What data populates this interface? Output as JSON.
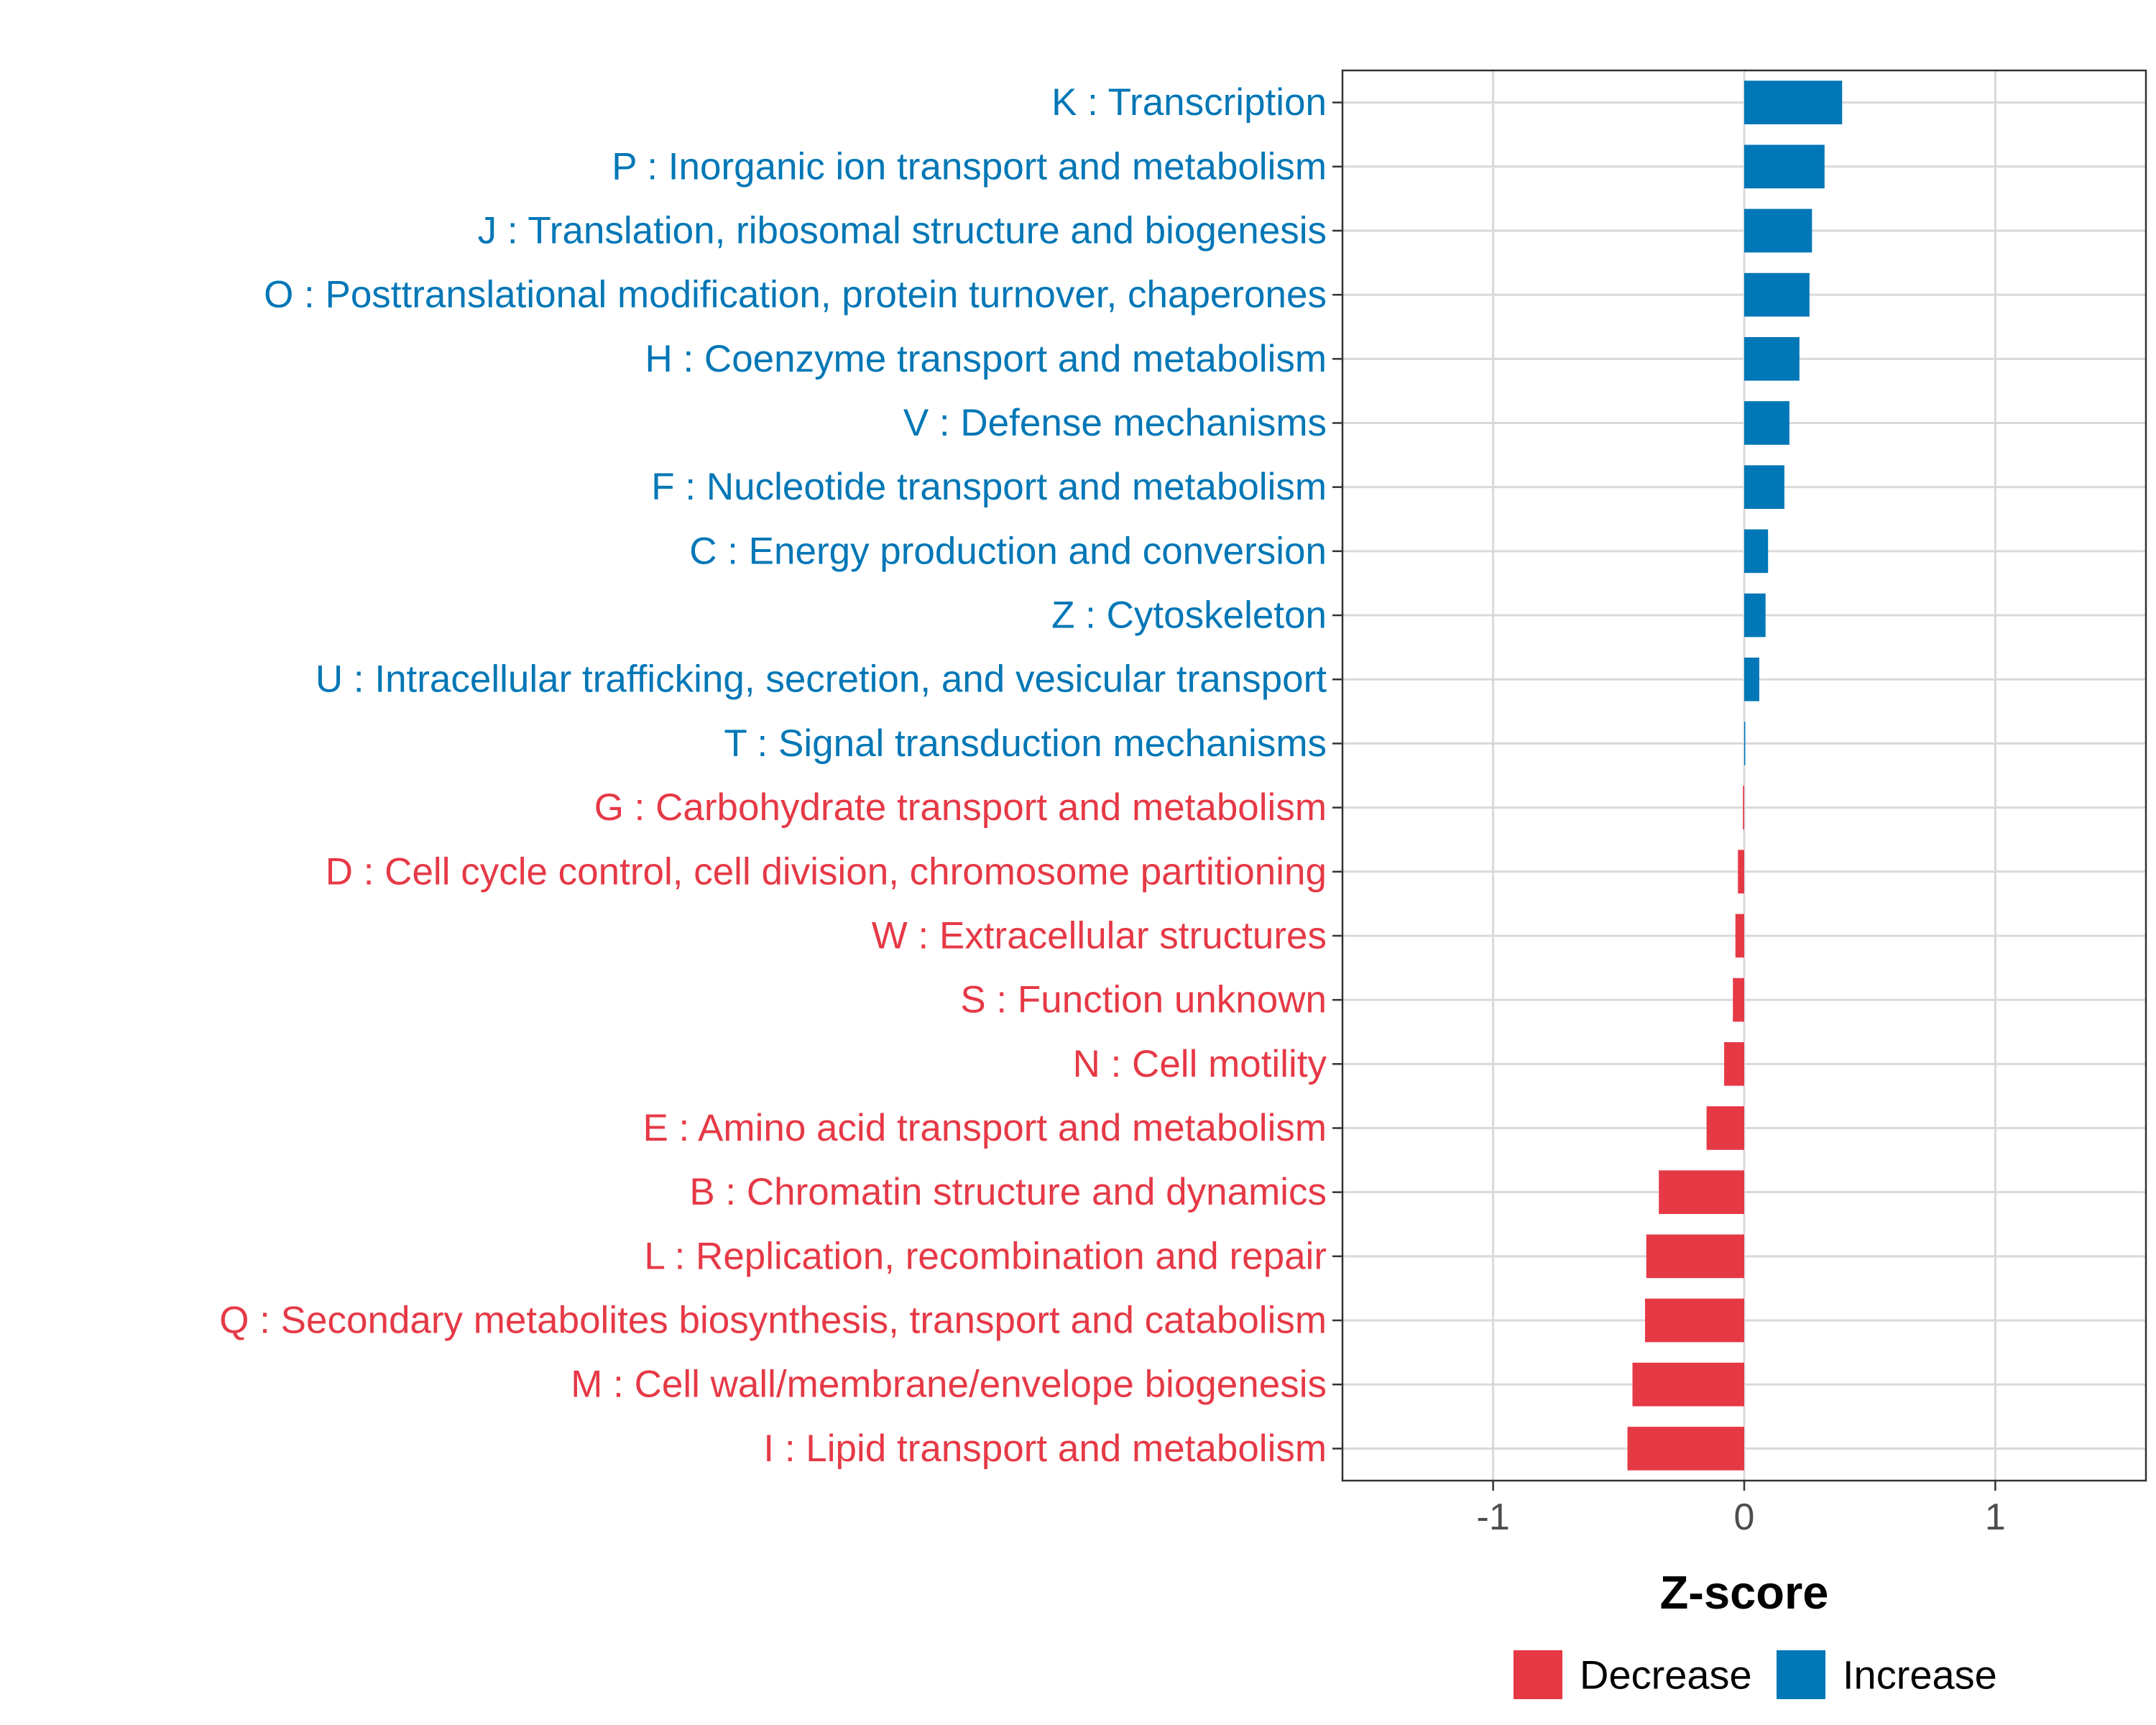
{
  "chart_data": {
    "type": "bar",
    "orientation": "horizontal",
    "title": "",
    "xlabel": "Z-score",
    "ylabel": "",
    "xlim": [
      -1.6,
      1.6
    ],
    "xticks": [
      {
        "value": -1,
        "label": "-1"
      },
      {
        "value": 0,
        "label": "0"
      },
      {
        "value": 1,
        "label": "1"
      }
    ],
    "grid": true,
    "legend": {
      "position": "bottom",
      "entries": [
        {
          "key": "Decrease",
          "label": "Decrease",
          "color": "#e63946"
        },
        {
          "key": "Increase",
          "label": "Increase",
          "color": "#0077b6"
        }
      ]
    },
    "categories": [
      {
        "label": "K : Transcription",
        "value": 0.39,
        "group": "Increase"
      },
      {
        "label": "P : Inorganic ion transport and metabolism",
        "value": 0.32,
        "group": "Increase"
      },
      {
        "label": "J : Translation, ribosomal structure and biogenesis",
        "value": 0.27,
        "group": "Increase"
      },
      {
        "label": "O : Posttranslational modification, protein turnover, chaperones",
        "value": 0.26,
        "group": "Increase"
      },
      {
        "label": "H : Coenzyme transport and metabolism",
        "value": 0.22,
        "group": "Increase"
      },
      {
        "label": "V : Defense mechanisms",
        "value": 0.18,
        "group": "Increase"
      },
      {
        "label": "F : Nucleotide transport and metabolism",
        "value": 0.16,
        "group": "Increase"
      },
      {
        "label": "C : Energy production and conversion",
        "value": 0.095,
        "group": "Increase"
      },
      {
        "label": "Z : Cytoskeleton",
        "value": 0.085,
        "group": "Increase"
      },
      {
        "label": "U : Intracellular trafficking, secretion, and vesicular transport",
        "value": 0.06,
        "group": "Increase"
      },
      {
        "label": "T : Signal transduction mechanisms",
        "value": 0.004,
        "group": "Increase"
      },
      {
        "label": "G : Carbohydrate transport and metabolism",
        "value": -0.005,
        "group": "Decrease"
      },
      {
        "label": "D : Cell cycle control, cell division, chromosome partitioning",
        "value": -0.025,
        "group": "Decrease"
      },
      {
        "label": "W : Extracellular structures",
        "value": -0.035,
        "group": "Decrease"
      },
      {
        "label": "S : Function unknown",
        "value": -0.045,
        "group": "Decrease"
      },
      {
        "label": "N : Cell motility",
        "value": -0.08,
        "group": "Decrease"
      },
      {
        "label": "E : Amino acid transport and metabolism",
        "value": -0.15,
        "group": "Decrease"
      },
      {
        "label": "B : Chromatin structure and dynamics",
        "value": -0.34,
        "group": "Decrease"
      },
      {
        "label": "L : Replication, recombination and repair",
        "value": -0.39,
        "group": "Decrease"
      },
      {
        "label": "Q : Secondary metabolites biosynthesis, transport and catabolism",
        "value": -0.395,
        "group": "Decrease"
      },
      {
        "label": "M : Cell wall/membrane/envelope biogenesis",
        "value": -0.445,
        "group": "Decrease"
      },
      {
        "label": "I : Lipid transport and metabolism",
        "value": -0.465,
        "group": "Decrease"
      }
    ]
  }
}
